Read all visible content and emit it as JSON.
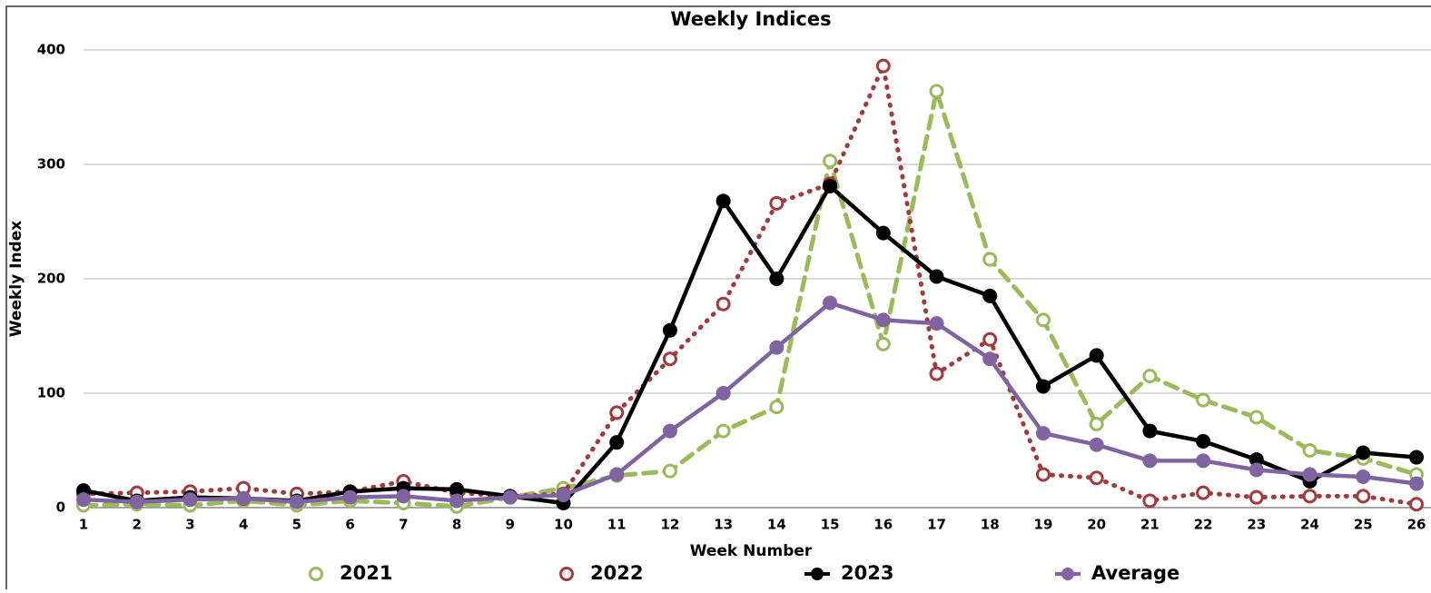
{
  "chart_data": {
    "type": "line",
    "title": "Weekly Indices",
    "x_label": "Week Number",
    "y_label": "Weekly Index",
    "categories": [
      "1",
      "2",
      "3",
      "4",
      "5",
      "6",
      "7",
      "8",
      "9",
      "10",
      "11",
      "12",
      "13",
      "14",
      "15",
      "16",
      "17",
      "18",
      "19",
      "20",
      "21",
      "22",
      "23",
      "24",
      "25",
      "26"
    ],
    "ylim": [
      0,
      400
    ],
    "yticks": [
      0,
      100,
      200,
      300,
      400
    ],
    "grid": true,
    "legend": "bottom",
    "series": [
      {
        "name": "2021",
        "color": "#9bbb59",
        "style": "dashed",
        "marker": "open",
        "values": [
          2,
          3,
          2,
          6,
          2,
          6,
          4,
          1,
          9,
          17,
          28,
          32,
          67,
          88,
          303,
          143,
          364,
          217,
          164,
          73,
          115,
          94,
          79,
          50,
          43,
          29
        ]
      },
      {
        "name": "2022",
        "color": "#a33a3d",
        "style": "dotted",
        "marker": "open",
        "values": [
          12,
          13,
          14,
          17,
          12,
          14,
          23,
          13,
          10,
          12,
          83,
          130,
          178,
          266,
          283,
          386,
          117,
          147,
          29,
          26,
          6,
          13,
          9,
          10,
          10,
          3
        ]
      },
      {
        "name": "2023",
        "color": "#000000",
        "style": "solid",
        "marker": "filled",
        "values": [
          15,
          6,
          9,
          8,
          6,
          14,
          17,
          16,
          10,
          4,
          57,
          155,
          268,
          200,
          281,
          240,
          202,
          185,
          106,
          133,
          67,
          58,
          42,
          23,
          48,
          44
        ]
      },
      {
        "name": "Average",
        "color": "#8064a2",
        "style": "solid",
        "marker": "filled",
        "values": [
          7,
          5,
          7,
          8,
          5,
          9,
          10,
          6,
          9,
          11,
          29,
          67,
          100,
          140,
          179,
          164,
          161,
          130,
          65,
          55,
          41,
          41,
          33,
          29,
          27,
          21
        ]
      }
    ]
  }
}
